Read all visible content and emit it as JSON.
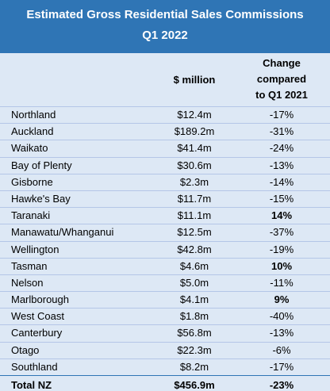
{
  "chart_data": {
    "type": "table",
    "title": "Estimated Gross Residential Sales Commissions",
    "subtitle": "Q1 2022",
    "columns": [
      "",
      "$ million",
      "Change compared to Q1 2021"
    ],
    "column_header_value": "$ million",
    "column_header_change": "Change\ncompared\nto Q1 2021",
    "rows": [
      {
        "region": "Northland",
        "value": "$12.4m",
        "change": "-17%",
        "positive": false
      },
      {
        "region": "Auckland",
        "value": "$189.2m",
        "change": "-31%",
        "positive": false
      },
      {
        "region": "Waikato",
        "value": "$41.4m",
        "change": "-24%",
        "positive": false
      },
      {
        "region": "Bay of Plenty",
        "value": "$30.6m",
        "change": "-13%",
        "positive": false
      },
      {
        "region": "Gisborne",
        "value": "$2.3m",
        "change": "-14%",
        "positive": false
      },
      {
        "region": "Hawke's Bay",
        "value": "$11.7m",
        "change": "-15%",
        "positive": false
      },
      {
        "region": "Taranaki",
        "value": "$11.1m",
        "change": "14%",
        "positive": true
      },
      {
        "region": "Manawatu/Whanganui",
        "value": "$12.5m",
        "change": "-37%",
        "positive": false
      },
      {
        "region": "Wellington",
        "value": "$42.8m",
        "change": "-19%",
        "positive": false
      },
      {
        "region": "Tasman",
        "value": "$4.6m",
        "change": "10%",
        "positive": true
      },
      {
        "region": "Nelson",
        "value": "$5.0m",
        "change": "-11%",
        "positive": false
      },
      {
        "region": "Marlborough",
        "value": "$4.1m",
        "change": "9%",
        "positive": true
      },
      {
        "region": "West Coast",
        "value": "$1.8m",
        "change": "-40%",
        "positive": false
      },
      {
        "region": "Canterbury",
        "value": "$56.8m",
        "change": "-13%",
        "positive": false
      },
      {
        "region": "Otago",
        "value": "$22.3m",
        "change": "-6%",
        "positive": false
      },
      {
        "region": "Southland",
        "value": "$8.2m",
        "change": "-17%",
        "positive": false
      }
    ],
    "total": {
      "region": "Total NZ",
      "value": "$456.9m",
      "change": "-23%"
    }
  },
  "colors": {
    "title_bg": "#2f75b5",
    "row_bg": "#dde8f5",
    "row_border": "#b4c6e7"
  }
}
